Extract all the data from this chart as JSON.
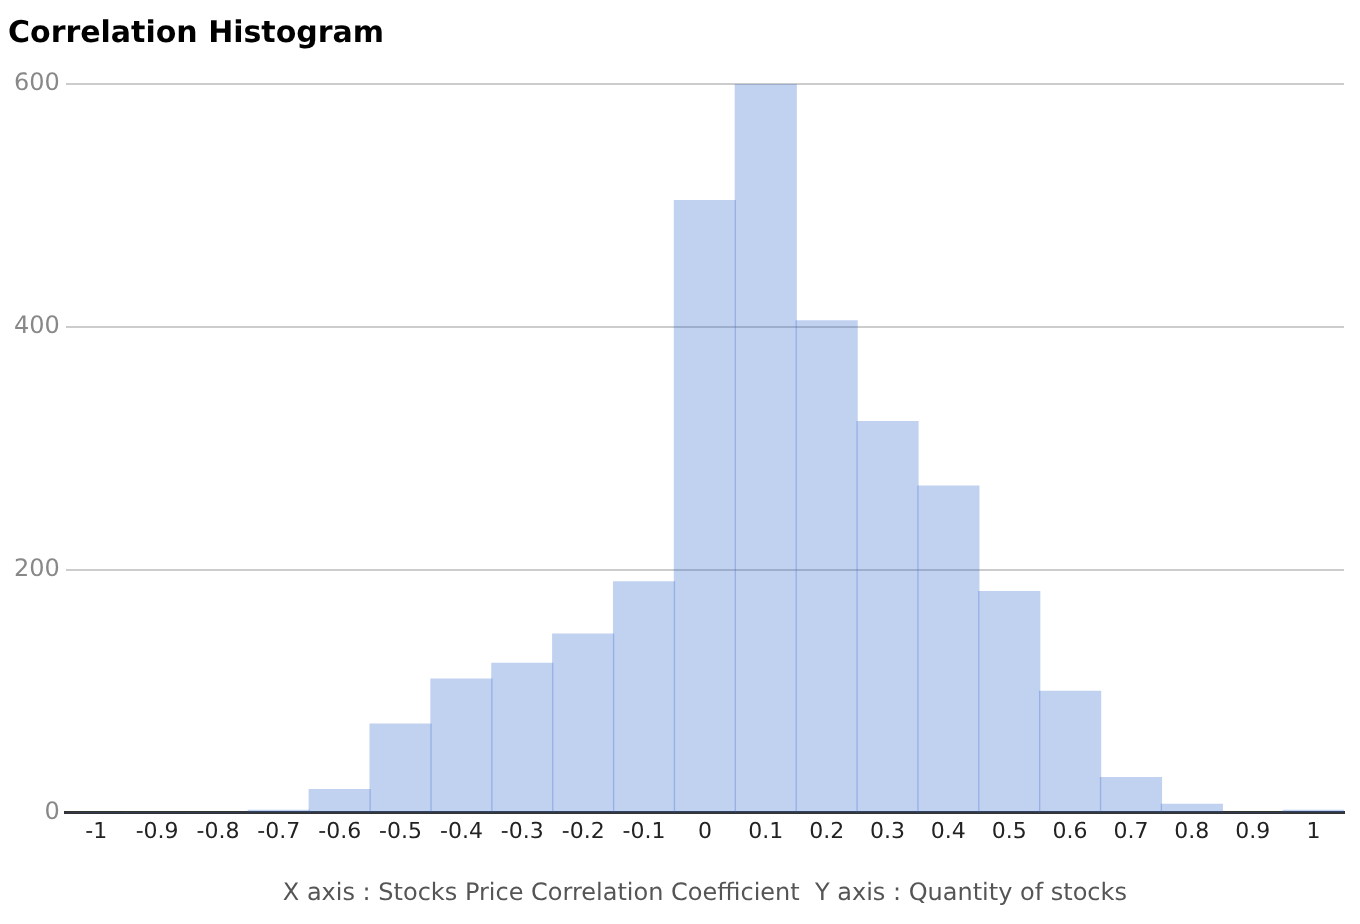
{
  "chart_data": {
    "type": "histogram",
    "title": "Correlation Histogram",
    "xlabel": "X axis : Stocks Price Correlation Coefficient  Y axis : Quantity of stocks",
    "bins": [
      -1.05,
      -0.95,
      -0.85,
      -0.75,
      -0.65,
      -0.55,
      -0.45,
      -0.35,
      -0.25,
      -0.15,
      -0.05,
      0.05,
      0.15,
      0.25,
      0.35,
      0.45,
      0.55,
      0.65,
      0.75,
      0.85,
      0.95,
      1.05
    ],
    "values": [
      0,
      0,
      0,
      2,
      19,
      73,
      110,
      123,
      147,
      190,
      504,
      600,
      405,
      322,
      269,
      182,
      100,
      29,
      7,
      0,
      2
    ],
    "color": "#3366cc",
    "xlim": [
      -1.05,
      1.05
    ],
    "xticks": [
      -1,
      -0.9,
      -0.8,
      -0.7,
      -0.6,
      -0.5,
      -0.4,
      -0.3,
      -0.2,
      -0.1,
      0,
      0.1,
      0.2,
      0.3,
      0.4,
      0.5,
      0.6,
      0.7,
      0.8,
      0.9,
      1
    ],
    "ylim": [
      0,
      600
    ],
    "yticks": [
      0,
      200,
      400,
      600
    ],
    "grid": "y",
    "legend": false
  }
}
